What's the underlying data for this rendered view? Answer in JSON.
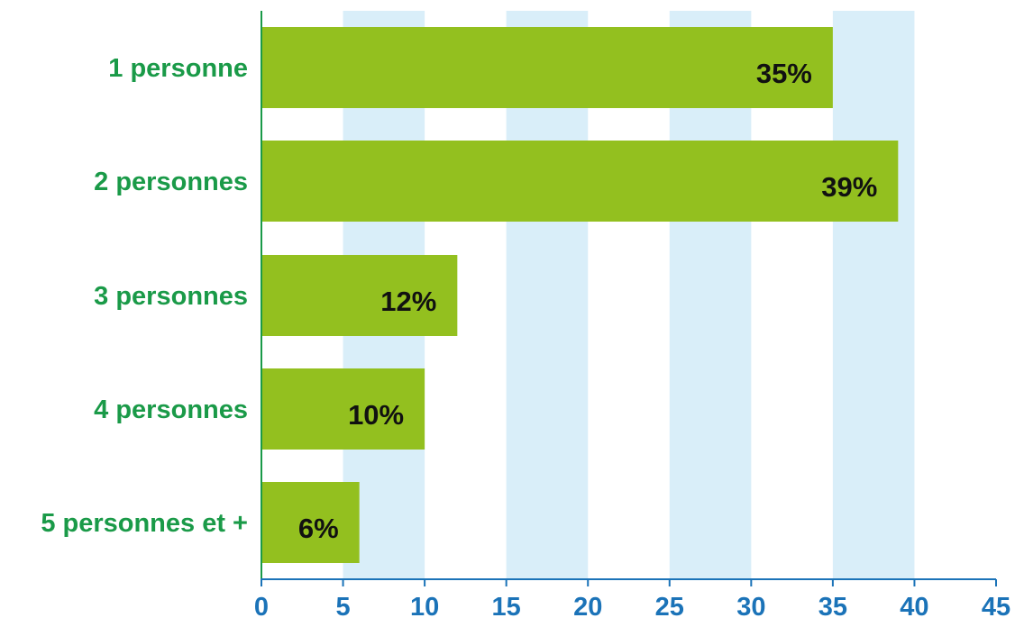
{
  "chart_data": {
    "type": "bar",
    "orientation": "horizontal",
    "categories": [
      "1 personne",
      "2 personnes",
      "3 personnes",
      "4 personnes",
      "5 personnes et +"
    ],
    "values": [
      35,
      39,
      12,
      10,
      6
    ],
    "value_labels": [
      "35%",
      "39%",
      "12%",
      "10%",
      "6%"
    ],
    "xlim": [
      0,
      45
    ],
    "x_ticks": [
      "0",
      "5",
      "10",
      "15",
      "20",
      "25",
      "30",
      "35",
      "40",
      "45"
    ],
    "title": "",
    "xlabel": "",
    "ylabel": "",
    "grid": "alternating vertical bands",
    "colors": {
      "bar": "#93c01f",
      "band": "#d9eef9",
      "category_text": "#1a9a48",
      "tick_text": "#1b73b8",
      "y_axis": "#1a9a48",
      "x_axis": "#1b73b8",
      "value_text": "#111111"
    }
  }
}
